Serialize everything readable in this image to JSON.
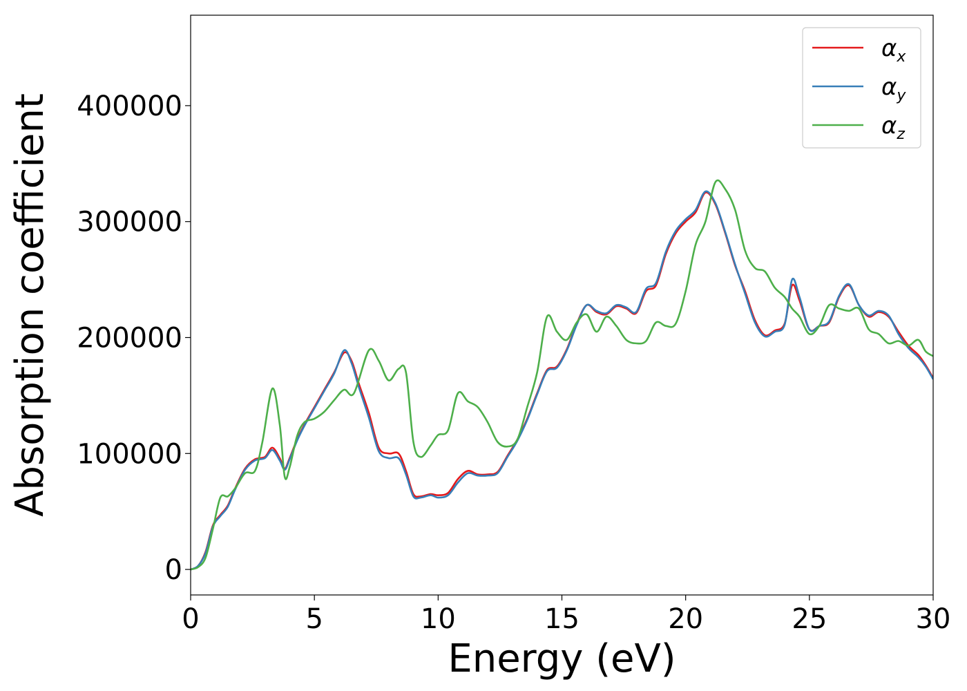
{
  "chart_data": {
    "type": "line",
    "title": "",
    "xlabel": "Energy (eV)",
    "ylabel": "Absorption coefficient",
    "xlim": [
      0,
      30
    ],
    "ylim": [
      -22000,
      478000
    ],
    "xticks": [
      0,
      5,
      10,
      15,
      20,
      25,
      30
    ],
    "xtick_labels": [
      "0",
      "5",
      "10",
      "15",
      "20",
      "25",
      "30"
    ],
    "yticks": [
      0,
      100000,
      200000,
      300000,
      400000
    ],
    "ytick_labels": [
      "0",
      "100000",
      "200000",
      "300000",
      "400000"
    ],
    "grid": false,
    "legend_position": "top-right",
    "series": [
      {
        "name": "αx",
        "symbol": "α",
        "subscript": "x",
        "color": "#e41a1c",
        "x": [
          0,
          0.3,
          0.6,
          0.9,
          1.2,
          1.5,
          1.8,
          2.2,
          2.6,
          3.0,
          3.3,
          3.6,
          3.8,
          4.0,
          4.3,
          4.6,
          5.0,
          5.4,
          5.8,
          6.2,
          6.5,
          6.8,
          7.2,
          7.6,
          8.0,
          8.4,
          8.7,
          9.0,
          9.3,
          9.7,
          10.0,
          10.4,
          10.8,
          11.2,
          11.6,
          12.0,
          12.4,
          12.8,
          13.2,
          13.6,
          14.0,
          14.4,
          14.8,
          15.2,
          15.6,
          16.0,
          16.4,
          16.8,
          17.2,
          17.6,
          18.0,
          18.4,
          18.8,
          19.2,
          19.6,
          20.0,
          20.4,
          20.8,
          21.2,
          21.6,
          22.0,
          22.4,
          22.8,
          23.2,
          23.6,
          24.0,
          24.3,
          24.6,
          25.0,
          25.4,
          25.8,
          26.2,
          26.6,
          27.0,
          27.4,
          27.8,
          28.2,
          28.6,
          29.0,
          29.4,
          29.7,
          30.0
        ],
        "y": [
          0,
          3000,
          15000,
          38000,
          47000,
          55000,
          70000,
          87000,
          95000,
          97000,
          105000,
          96000,
          87000,
          96000,
          112000,
          125000,
          140000,
          155000,
          170000,
          187000,
          180000,
          160000,
          135000,
          105000,
          100000,
          100000,
          85000,
          65000,
          63000,
          65000,
          64000,
          66000,
          78000,
          85000,
          82000,
          82000,
          84000,
          98000,
          112000,
          130000,
          152000,
          172000,
          175000,
          190000,
          212000,
          228000,
          222000,
          220000,
          227000,
          225000,
          221000,
          240000,
          245000,
          272000,
          290000,
          300000,
          308000,
          325000,
          315000,
          290000,
          262000,
          240000,
          215000,
          202000,
          206000,
          212000,
          245000,
          232000,
          207000,
          210000,
          213000,
          235000,
          245000,
          228000,
          218000,
          222000,
          218000,
          205000,
          193000,
          185000,
          176000,
          165000
        ]
      },
      {
        "name": "αy",
        "symbol": "α",
        "subscript": "y",
        "color": "#377eb8",
        "x": [
          0,
          0.3,
          0.6,
          0.9,
          1.2,
          1.5,
          1.8,
          2.2,
          2.6,
          3.0,
          3.3,
          3.6,
          3.8,
          4.0,
          4.3,
          4.6,
          5.0,
          5.4,
          5.8,
          6.2,
          6.5,
          6.8,
          7.2,
          7.6,
          8.0,
          8.4,
          8.7,
          9.0,
          9.3,
          9.7,
          10.0,
          10.4,
          10.8,
          11.2,
          11.6,
          12.0,
          12.4,
          12.8,
          13.2,
          13.6,
          14.0,
          14.4,
          14.8,
          15.2,
          15.6,
          16.0,
          16.4,
          16.8,
          17.2,
          17.6,
          18.0,
          18.4,
          18.8,
          19.2,
          19.6,
          20.0,
          20.4,
          20.8,
          21.2,
          21.6,
          22.0,
          22.4,
          22.8,
          23.2,
          23.6,
          24.0,
          24.3,
          24.6,
          25.0,
          25.4,
          25.8,
          26.2,
          26.6,
          27.0,
          27.4,
          27.8,
          28.2,
          28.6,
          29.0,
          29.4,
          29.7,
          30.0
        ],
        "y": [
          0,
          3000,
          14000,
          37000,
          46000,
          54000,
          69000,
          86000,
          94000,
          96000,
          103000,
          94000,
          86000,
          95000,
          111000,
          124000,
          139000,
          154000,
          169000,
          189000,
          178000,
          157000,
          131000,
          102000,
          96000,
          96000,
          82000,
          63000,
          62000,
          64000,
          62000,
          64000,
          75000,
          83000,
          81000,
          81000,
          83000,
          97000,
          111000,
          129000,
          151000,
          171000,
          174000,
          189000,
          211000,
          228000,
          223000,
          221000,
          228000,
          226000,
          222000,
          242000,
          247000,
          274000,
          292000,
          302000,
          310000,
          326000,
          316000,
          291000,
          263000,
          238000,
          213000,
          201000,
          205000,
          211000,
          250000,
          235000,
          207000,
          210000,
          214000,
          236000,
          246000,
          228000,
          219000,
          223000,
          219000,
          203000,
          191000,
          183000,
          175000,
          164000
        ]
      },
      {
        "name": "αz",
        "symbol": "α",
        "subscript": "z",
        "color": "#4daf4a",
        "x": [
          0,
          0.3,
          0.6,
          0.9,
          1.2,
          1.5,
          1.8,
          2.2,
          2.6,
          2.9,
          3.3,
          3.6,
          3.8,
          4.0,
          4.3,
          4.6,
          5.0,
          5.4,
          5.8,
          6.2,
          6.6,
          7.2,
          7.6,
          8.0,
          8.4,
          8.7,
          9.0,
          9.3,
          9.7,
          10.0,
          10.4,
          10.8,
          11.2,
          11.6,
          12.0,
          12.4,
          12.8,
          13.2,
          13.6,
          14.0,
          14.4,
          14.8,
          15.2,
          15.6,
          16.0,
          16.4,
          16.8,
          17.2,
          17.6,
          18.0,
          18.4,
          18.8,
          19.2,
          19.6,
          20.0,
          20.4,
          20.8,
          21.2,
          21.6,
          22.0,
          22.4,
          22.8,
          23.2,
          23.6,
          24.0,
          24.3,
          24.6,
          25.0,
          25.4,
          25.8,
          26.2,
          26.6,
          27.0,
          27.4,
          27.8,
          28.2,
          28.6,
          29.0,
          29.4,
          29.7,
          30.0
        ],
        "y": [
          0,
          2000,
          10000,
          35000,
          62000,
          63000,
          70000,
          83000,
          85000,
          110000,
          156000,
          125000,
          80000,
          88000,
          115000,
          127000,
          130000,
          136000,
          146000,
          155000,
          152000,
          189000,
          180000,
          163000,
          173000,
          170000,
          110000,
          97000,
          107000,
          116000,
          120000,
          152000,
          145000,
          140000,
          127000,
          110000,
          106000,
          112000,
          140000,
          170000,
          218000,
          205000,
          198000,
          213000,
          220000,
          205000,
          218000,
          210000,
          198000,
          195000,
          197000,
          213000,
          210000,
          212000,
          240000,
          280000,
          300000,
          334000,
          328000,
          310000,
          275000,
          260000,
          257000,
          243000,
          235000,
          225000,
          218000,
          203000,
          210000,
          228000,
          225000,
          223000,
          225000,
          207000,
          203000,
          195000,
          197000,
          193000,
          198000,
          188000,
          184000
        ]
      }
    ]
  }
}
